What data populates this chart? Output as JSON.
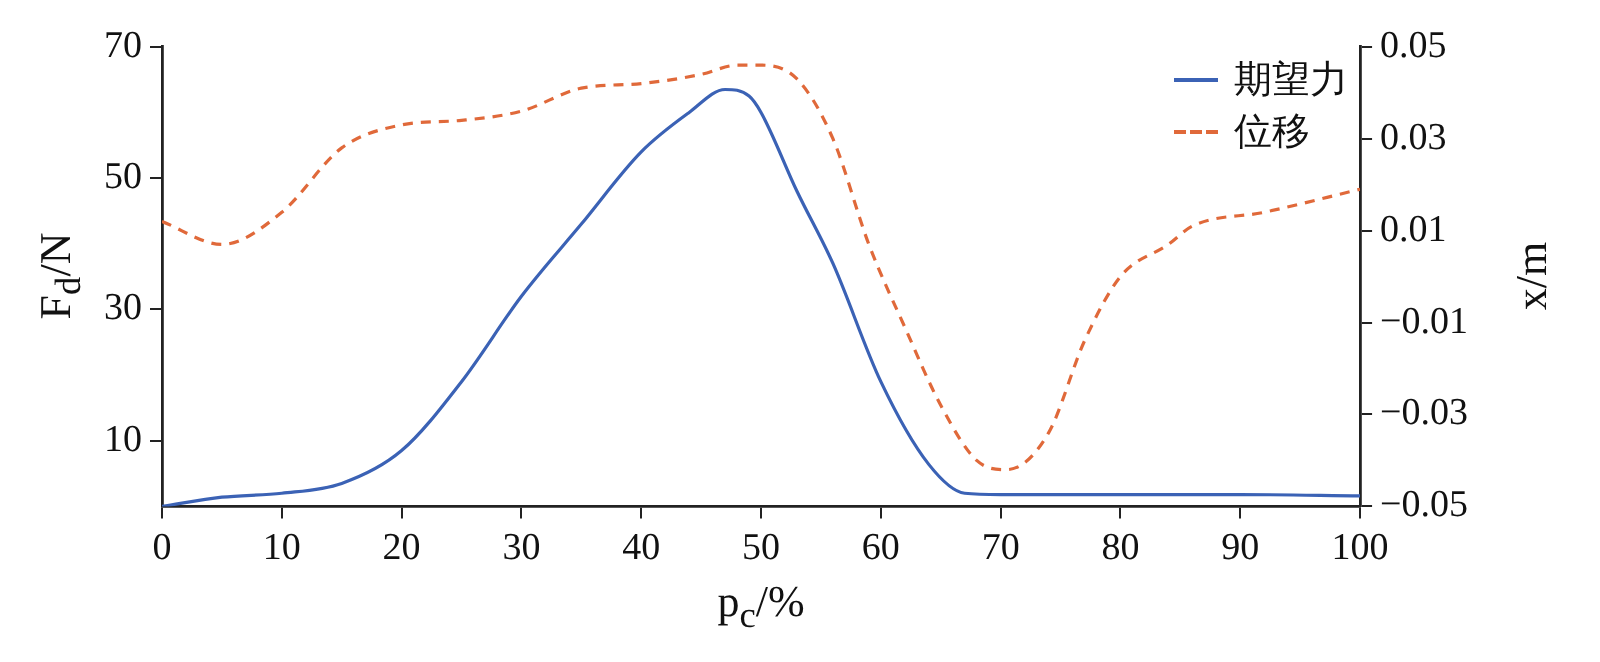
{
  "chart_data": {
    "type": "line",
    "xlabel": "p$_{c}$/%",
    "ylabel": "F$_{d}$/N",
    "y2label": "x/m",
    "xlim": [
      0,
      100
    ],
    "xticks": [
      0,
      10,
      20,
      30,
      40,
      50,
      60,
      70,
      80,
      90,
      100
    ],
    "ylim": [
      0,
      70
    ],
    "yticks": [
      10,
      30,
      50,
      70
    ],
    "y2lim": [
      -0.05,
      0.05
    ],
    "y2ticks": [
      {
        "value": -0.05,
        "label": "−0.05"
      },
      {
        "value": -0.03,
        "label": "−0.03"
      },
      {
        "value": -0.01,
        "label": "−0.01"
      },
      0.01,
      0.03,
      0.05
    ],
    "grid": false,
    "legend": "top right",
    "marker": "none",
    "series": [
      {
        "name": "期望力",
        "color": "#3b62b5",
        "line_style": "solid",
        "x": [
          0,
          5,
          10,
          15,
          20,
          25,
          30,
          35,
          40,
          44,
          47,
          49,
          50,
          53,
          56,
          60,
          64,
          67,
          70,
          80,
          90,
          100
        ],
        "values": [
          0,
          1.4,
          2,
          3.5,
          8.5,
          19,
          32,
          43,
          54,
          60,
          63.5,
          62.5,
          60,
          48,
          37,
          19,
          6.4,
          2,
          1.8,
          1.8,
          1.8,
          1.6
        ]
      },
      {
        "name": "位移",
        "color": "#e0693a",
        "line_style": "dashed",
        "axis": "y2",
        "x": [
          0,
          5,
          10,
          15,
          20,
          25,
          30,
          35,
          40,
          45,
          48,
          50,
          53,
          56,
          59,
          62,
          65,
          68,
          70.5,
          74,
          77,
          80,
          84,
          86,
          92,
          100
        ],
        "values": [
          0.012,
          0.007,
          0.014,
          0.028,
          0.033,
          0.034,
          0.036,
          0.041,
          0.042,
          0.044,
          0.046,
          0.046,
          0.043,
          0.03,
          0.007,
          -0.011,
          -0.028,
          -0.04,
          -0.042,
          -0.034,
          -0.014,
          0,
          0.007,
          0.011,
          0.014,
          0.019
        ]
      }
    ]
  }
}
